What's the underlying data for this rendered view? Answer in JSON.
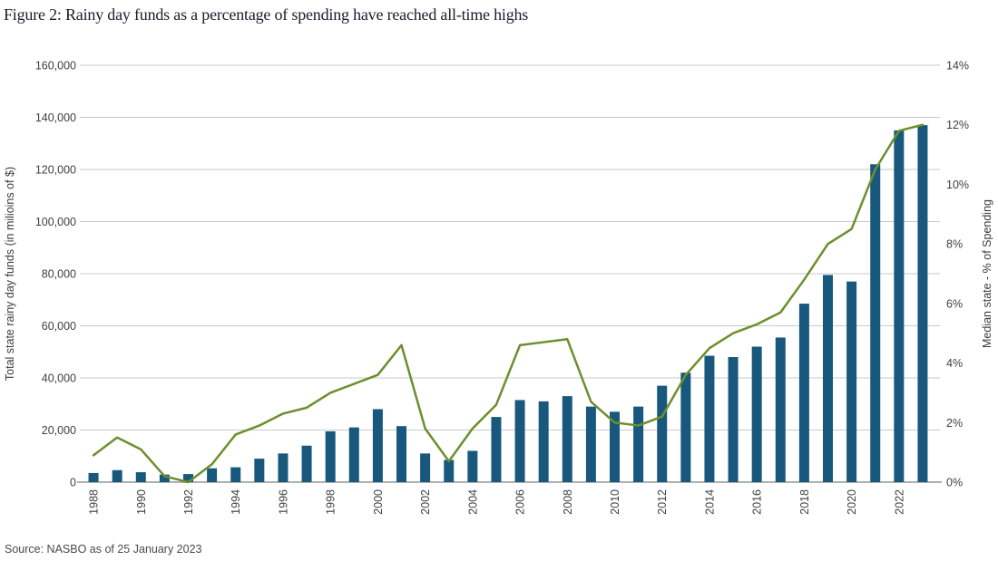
{
  "title": "Figure 2: Rainy day funds as a percentage of spending have reached all-time highs",
  "source": "Source: NASBO as of 25 January 2023",
  "colors": {
    "bar": "#17587C",
    "line": "#6C8F2D",
    "grid": "#C9C9C9",
    "axis_line": "#B0B0B0",
    "tick_text": "#3F3F3F",
    "axis_label_text": "#3A3A3A",
    "title_text": "#1C1C2E",
    "background": "#FFFFFF"
  },
  "chart_data": {
    "type": "bar",
    "title": "Figure 2: Rainy day funds as a percentage of spending have reached all-time highs",
    "x": [
      1988,
      1989,
      1990,
      1991,
      1992,
      1993,
      1994,
      1995,
      1996,
      1997,
      1998,
      1999,
      2000,
      2001,
      2002,
      2003,
      2004,
      2005,
      2006,
      2007,
      2008,
      2009,
      2010,
      2011,
      2012,
      2013,
      2014,
      2015,
      2016,
      2017,
      2018,
      2019,
      2020,
      2021,
      2022,
      2023
    ],
    "x_tick_labels": [
      "1988",
      "1990",
      "1992",
      "1994",
      "1996",
      "1998",
      "2000",
      "2002",
      "2004",
      "2006",
      "2008",
      "2010",
      "2012",
      "2014",
      "2016",
      "2018",
      "2020",
      "2022"
    ],
    "series": [
      {
        "name": "Total state rainy day funds",
        "type": "bar",
        "axis": "left",
        "values": [
          3500,
          4600,
          3800,
          2900,
          3100,
          5300,
          5700,
          9000,
          11000,
          14000,
          19500,
          21000,
          28000,
          21500,
          11000,
          8500,
          12000,
          25000,
          31500,
          31000,
          33000,
          29000,
          27000,
          29000,
          37000,
          42000,
          48500,
          48000,
          52000,
          55500,
          68500,
          79500,
          77000,
          122000,
          135000,
          137000
        ]
      },
      {
        "name": "Median state - % of Spending",
        "type": "line",
        "axis": "right",
        "values": [
          0.9,
          1.5,
          1.1,
          0.2,
          0.0,
          0.6,
          1.6,
          1.9,
          2.3,
          2.5,
          3.0,
          3.3,
          3.6,
          4.6,
          1.8,
          0.7,
          1.8,
          2.6,
          4.6,
          4.7,
          4.8,
          2.7,
          2.0,
          1.9,
          2.2,
          3.6,
          4.5,
          5.0,
          5.3,
          5.7,
          6.8,
          8.0,
          8.5,
          10.5,
          11.8,
          12.0
        ]
      }
    ],
    "left_axis": {
      "label": "Total state rainy day funds (in milioins of $)",
      "min": 0,
      "max": 160000,
      "tick_step": 20000
    },
    "right_axis": {
      "label": "Median state - % of Spending",
      "min": 0,
      "max": 14,
      "tick_step": 2,
      "suffix": "%"
    },
    "grid": true,
    "legend": "none"
  }
}
